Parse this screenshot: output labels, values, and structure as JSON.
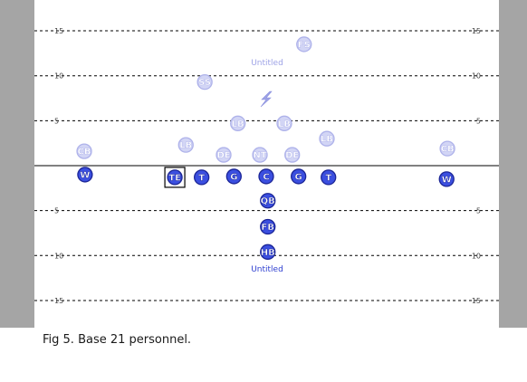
{
  "caption": "Fig 5. Base 21 personnel.",
  "colors": {
    "offense_fill": "#3b4fe0",
    "offense_stroke": "#1b2596",
    "offense_text": "#ffffff",
    "defense_fill": "#d2d5f5",
    "defense_stroke": "#aeb2ea",
    "defense_text": "#ffffff",
    "offense_title": "#2e3fd0",
    "defense_title": "#9ea3e6",
    "yard_label": "#444444",
    "sideline": "#a5a5a5"
  },
  "field": {
    "yard_lines": [
      {
        "yard": 15,
        "left_label": "15",
        "right_label": "15"
      },
      {
        "yard": 10,
        "left_label": "10",
        "right_label": "10"
      },
      {
        "yard": 5,
        "left_label": "5",
        "right_label": "5"
      },
      {
        "yard": 0,
        "left_label": "",
        "right_label": ""
      },
      {
        "yard": -5,
        "left_label": "5",
        "right_label": "5"
      },
      {
        "yard": -10,
        "left_label": "10",
        "right_label": "10"
      },
      {
        "yard": -15,
        "left_label": "15",
        "right_label": "15"
      }
    ]
  },
  "defense": {
    "title": "Untitled",
    "players": [
      {
        "label": "FS",
        "lateral": 4.8,
        "depth": 13.5
      },
      {
        "label": "SS",
        "lateral": -7.8,
        "depth": 9.3
      },
      {
        "label": "LB",
        "lateral": -3.6,
        "depth": 4.7
      },
      {
        "label": "LB",
        "lateral": 2.3,
        "depth": 4.7
      },
      {
        "label": "LB",
        "lateral": 7.7,
        "depth": 3.0
      },
      {
        "label": "LB",
        "lateral": -10.2,
        "depth": 2.3
      },
      {
        "label": "DE",
        "lateral": -5.4,
        "depth": 1.2
      },
      {
        "label": "NT",
        "lateral": -0.8,
        "depth": 1.2
      },
      {
        "label": "DE",
        "lateral": 3.3,
        "depth": 1.2
      },
      {
        "label": "CB",
        "lateral": -23.1,
        "depth": 1.6
      },
      {
        "label": "CB",
        "lateral": 23.0,
        "depth": 1.9
      }
    ]
  },
  "offense": {
    "title": "Untitled",
    "players": [
      {
        "label": "W",
        "lateral": -23.0,
        "depth": -1.0,
        "selected": false
      },
      {
        "label": "TE",
        "lateral": -11.6,
        "depth": -1.3,
        "selected": true
      },
      {
        "label": "T",
        "lateral": -8.2,
        "depth": -1.3,
        "selected": false
      },
      {
        "label": "G",
        "lateral": -4.1,
        "depth": -1.2,
        "selected": false
      },
      {
        "label": "C",
        "lateral": 0.0,
        "depth": -1.2,
        "selected": false
      },
      {
        "label": "G",
        "lateral": 4.1,
        "depth": -1.2,
        "selected": false
      },
      {
        "label": "T",
        "lateral": 7.9,
        "depth": -1.3,
        "selected": false
      },
      {
        "label": "W",
        "lateral": 22.9,
        "depth": -1.5,
        "selected": false
      },
      {
        "label": "QB",
        "lateral": 0.2,
        "depth": -3.9,
        "selected": false
      },
      {
        "label": "FB",
        "lateral": 0.2,
        "depth": -6.8,
        "selected": false
      },
      {
        "label": "HB",
        "lateral": 0.2,
        "depth": -9.6,
        "selected": false
      }
    ]
  },
  "icon": "lightning-icon"
}
